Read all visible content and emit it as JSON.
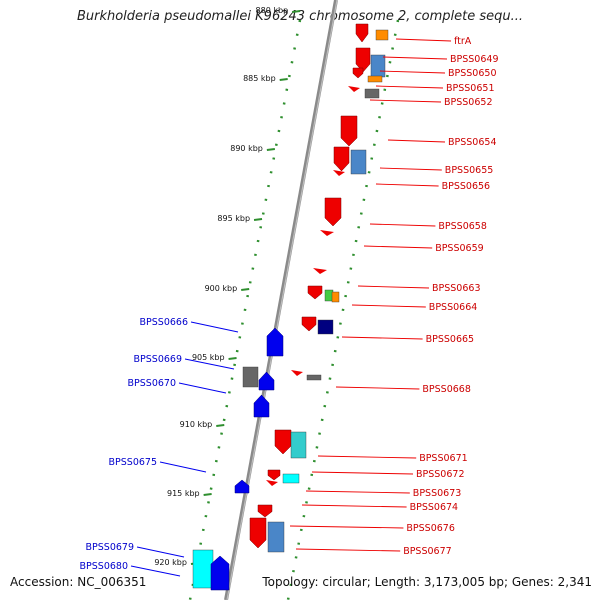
{
  "title": "Burkholderia pseudomallei K96243 chromosome 2, complete sequ...",
  "footer": {
    "accession": "Accession: NC_006351",
    "topology": "Topology: circular; Length: 3,173,005 bp; Genes: 2,341"
  },
  "colors": {
    "forward_gene": "#ee0000",
    "reverse_gene": "#0000ee",
    "forward_label": "#cc0000",
    "reverse_label": "#0000cc",
    "tick": "#2f8f2f",
    "backbone": "#9a9a9a"
  },
  "kbp_ticks": [
    "880 kbp",
    "885 kbp",
    "890 kbp",
    "895 kbp",
    "900 kbp",
    "905 kbp",
    "910 kbp",
    "915 kbp",
    "920 kbp"
  ],
  "right_labels": [
    "ftrA",
    "BPSS0649",
    "BPSS0650",
    "BPSS0651",
    "BPSS0652",
    "BPSS0654",
    "BPSS0655",
    "BPSS0656",
    "BPSS0658",
    "BPSS0659",
    "BPSS0663",
    "BPSS0664",
    "BPSS0665",
    "BPSS0668",
    "BPSS0671",
    "BPSS0672",
    "BPSS0673",
    "BPSS0674",
    "BPSS0676",
    "BPSS0677"
  ],
  "left_labels": [
    "BPSS0666",
    "BPSS0669",
    "BPSS0670",
    "BPSS0675",
    "BPSS0679",
    "BPSS0680"
  ]
}
